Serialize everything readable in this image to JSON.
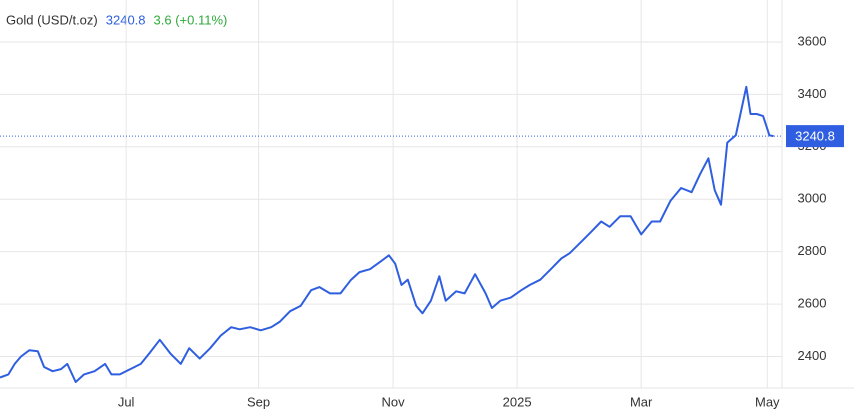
{
  "chart_data": {
    "type": "line",
    "title": "Gold (USD/t.oz)",
    "last_value": 3240.8,
    "change": "3.6 (+0.11%)",
    "x": [
      0,
      4,
      7,
      10,
      14,
      18,
      21,
      25,
      29,
      32,
      36,
      40,
      45,
      50,
      53,
      57,
      62,
      67,
      71,
      76,
      81,
      86,
      90,
      95,
      100,
      105,
      110,
      114,
      119,
      124,
      129,
      133,
      138,
      143,
      148,
      152,
      157,
      162,
      167,
      171,
      176,
      181,
      185,
      188,
      191,
      194,
      198,
      201,
      205,
      209,
      212,
      217,
      221,
      226,
      231,
      234,
      238,
      243,
      248,
      252,
      257,
      262,
      267,
      271,
      276,
      281,
      286,
      290,
      295,
      300,
      305,
      310,
      314,
      319,
      324,
      329,
      333,
      337,
      340,
      343,
      346,
      350,
      352,
      355,
      357,
      360,
      363,
      366,
      368
    ],
    "series": [
      {
        "name": "Gold",
        "color": "#2f5fe0",
        "values": [
          2320,
          2332,
          2372,
          2400,
          2424,
          2420,
          2360,
          2344,
          2352,
          2372,
          2303,
          2332,
          2344,
          2372,
          2332,
          2332,
          2352,
          2372,
          2412,
          2464,
          2412,
          2372,
          2432,
          2392,
          2432,
          2480,
          2512,
          2504,
          2512,
          2500,
          2512,
          2532,
          2573,
          2593,
          2653,
          2665,
          2641,
          2641,
          2693,
          2722,
          2733,
          2762,
          2786,
          2754,
          2673,
          2693,
          2593,
          2565,
          2613,
          2706,
          2613,
          2649,
          2641,
          2714,
          2641,
          2585,
          2613,
          2625,
          2653,
          2673,
          2693,
          2733,
          2774,
          2794,
          2834,
          2874,
          2915,
          2895,
          2935,
          2935,
          2866,
          2915,
          2915,
          2995,
          3043,
          3027,
          3095,
          3156,
          3035,
          2979,
          3216,
          3244,
          3317,
          3429,
          3325,
          3325,
          3317,
          3244,
          3240.8
        ]
      }
    ],
    "xlim": [
      0,
      372
    ],
    "xticks": [
      {
        "value": 60,
        "label": "Jul"
      },
      {
        "value": 123,
        "label": "Sep"
      },
      {
        "value": 187,
        "label": "Nov"
      },
      {
        "value": 246,
        "label": "2025"
      },
      {
        "value": 305,
        "label": "Mar"
      },
      {
        "value": 365,
        "label": "May"
      }
    ],
    "ylim": [
      2280,
      3760
    ],
    "yticks": [
      2400,
      2600,
      2800,
      3000,
      3200,
      3400,
      3600
    ],
    "grid": true
  }
}
